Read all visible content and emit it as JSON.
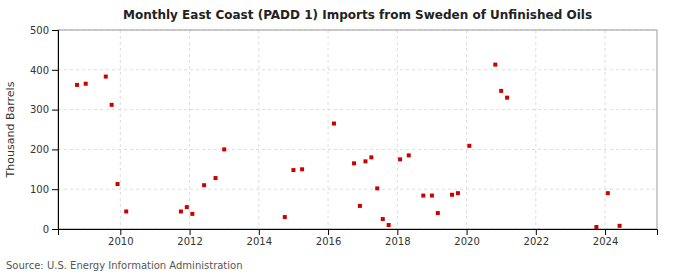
{
  "chart_data": {
    "type": "scatter",
    "title": "Monthly East Coast (PADD 1) Imports from Sweden of Unfinished Oils",
    "ylabel": "Thousand Barrels",
    "annotations": [
      "Source: U.S. Energy Information Administration"
    ],
    "x": [
      2008.75,
      2009.0,
      2009.58,
      2009.75,
      2009.92,
      2010.17,
      2011.75,
      2011.92,
      2012.08,
      2012.42,
      2012.75,
      2013.0,
      2014.75,
      2015.0,
      2015.25,
      2016.17,
      2016.75,
      2016.92,
      2017.08,
      2017.25,
      2017.42,
      2017.58,
      2017.75,
      2018.08,
      2018.33,
      2018.75,
      2019.0,
      2019.17,
      2019.58,
      2019.75,
      2020.08,
      2020.83,
      2021.0,
      2021.17,
      2023.75,
      2024.08,
      2024.42
    ],
    "values": [
      362,
      365,
      383,
      312,
      113,
      44,
      44,
      55,
      38,
      110,
      128,
      200,
      30,
      148,
      150,
      265,
      165,
      58,
      170,
      180,
      102,
      25,
      10,
      175,
      185,
      84,
      84,
      40,
      86,
      90,
      209,
      413,
      347,
      330,
      5,
      90,
      8
    ],
    "color": "#cc0000",
    "marker": "square",
    "xlim": [
      2008.2,
      2025.5
    ],
    "ylim": [
      0,
      500
    ],
    "xticks": [
      2010,
      2012,
      2014,
      2016,
      2018,
      2020,
      2022,
      2024
    ],
    "yticks": [
      0,
      100,
      200,
      300,
      400,
      500
    ],
    "grid": true
  }
}
